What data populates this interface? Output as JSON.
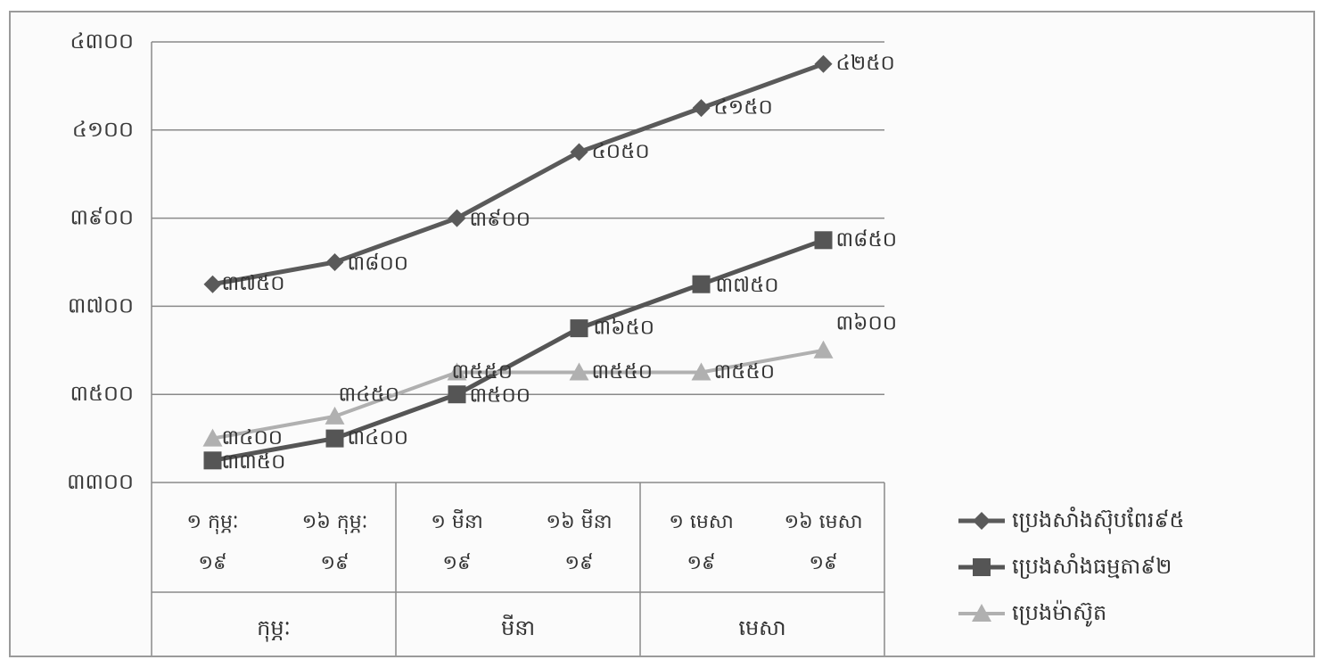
{
  "chart_data": {
    "type": "line",
    "title": "",
    "xlabel": "",
    "ylabel": "",
    "ylim": [
      3300,
      4300
    ],
    "yticks": [
      "៣៣០០",
      "៣៥០០",
      "៣៧០០",
      "៣៩០០",
      "៤១០០",
      "៤៣០០"
    ],
    "ytick_values": [
      3300,
      3500,
      3700,
      3900,
      4100,
      4300
    ],
    "categories": [
      {
        "line1": "១ កុម្ភៈ",
        "line2": "១៩"
      },
      {
        "line1": "១៦ កុម្ភៈ",
        "line2": "១៩"
      },
      {
        "line1": "១ មីនា",
        "line2": "១៩"
      },
      {
        "line1": "១៦ មីនា",
        "line2": "១៩"
      },
      {
        "line1": "១ មេសា",
        "line2": "១៩"
      },
      {
        "line1": "១៦ មេសា",
        "line2": "១៩"
      }
    ],
    "groups": [
      "កុម្ភៈ",
      "មីនា",
      "មេសា"
    ],
    "grid": true,
    "legend_position": "right-bottom",
    "series": [
      {
        "name": "ប្រេងសាំងស៊ុបពែរ៩៥",
        "values": [
          3750,
          3800,
          3900,
          4050,
          4150,
          4250
        ],
        "labels": [
          "៣៧៥០",
          "៣៨០០",
          "៣៩០០",
          "៤០៥០",
          "៤១៥០",
          "៤២៥០"
        ],
        "color": "#5a5a5a",
        "marker": "diamond"
      },
      {
        "name": "ប្រេងសាំងធម្មតា៩២",
        "values": [
          3350,
          3400,
          3500,
          3650,
          3750,
          3850
        ],
        "labels": [
          "៣៣៥០",
          "៣៤០០",
          "៣៥០០",
          "៣៦៥០",
          "៣៧៥០",
          "៣៨៥០"
        ],
        "color": "#555555",
        "marker": "square"
      },
      {
        "name": "ប្រេងម៉ាស៊ូត",
        "values": [
          3400,
          3450,
          3550,
          3550,
          3550,
          3600
        ],
        "labels": [
          "៣៤០០",
          "៣៤៥០",
          "៣៥៥០",
          "៣៥៥០",
          "៣៥៥០",
          "៣៦០០"
        ],
        "color": "#b0b0b0",
        "marker": "triangle"
      }
    ]
  }
}
